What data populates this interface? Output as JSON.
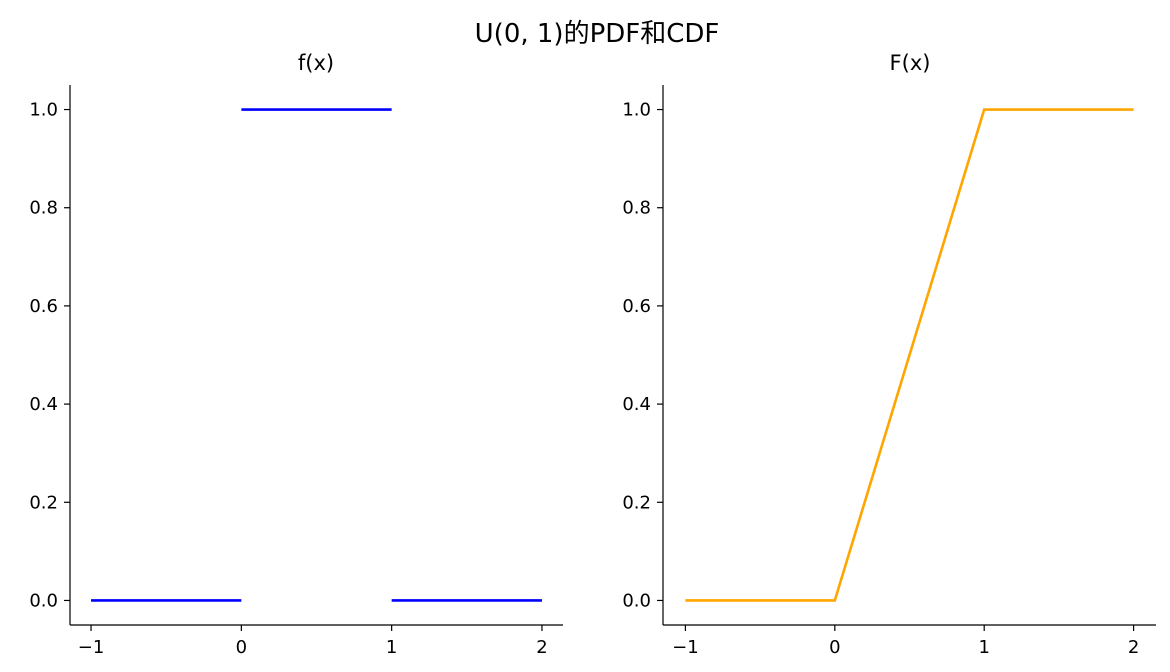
{
  "figure": {
    "suptitle": "U(0, 1)的PDF和CDF"
  },
  "chart_data": [
    {
      "type": "line",
      "title": "f(x)",
      "xlabel": "",
      "ylabel": "",
      "xlim": [
        -1.14,
        2.14
      ],
      "ylim": [
        -0.05,
        1.05
      ],
      "xticks": [
        -1,
        0,
        1,
        2
      ],
      "xtick_labels": [
        "−1",
        "0",
        "1",
        "2"
      ],
      "yticks": [
        0.0,
        0.2,
        0.4,
        0.6,
        0.8,
        1.0
      ],
      "ytick_labels": [
        "0.0",
        "0.2",
        "0.4",
        "0.6",
        "0.8",
        "1.0"
      ],
      "grid": false,
      "series": [
        {
          "color": "#0000ff",
          "segments": [
            {
              "x": [
                -1,
                0
              ],
              "y": [
                0,
                0
              ]
            },
            {
              "x": [
                0,
                1
              ],
              "y": [
                1,
                1
              ]
            },
            {
              "x": [
                1,
                2
              ],
              "y": [
                0,
                0
              ]
            }
          ]
        }
      ]
    },
    {
      "type": "line",
      "title": "F(x)",
      "xlabel": "",
      "ylabel": "",
      "xlim": [
        -1.15,
        2.15
      ],
      "ylim": [
        -0.05,
        1.05
      ],
      "xticks": [
        -1,
        0,
        1,
        2
      ],
      "xtick_labels": [
        "−1",
        "0",
        "1",
        "2"
      ],
      "yticks": [
        0.0,
        0.2,
        0.4,
        0.6,
        0.8,
        1.0
      ],
      "ytick_labels": [
        "0.0",
        "0.2",
        "0.4",
        "0.6",
        "0.8",
        "1.0"
      ],
      "grid": false,
      "series": [
        {
          "color": "#ffa500",
          "segments": [
            {
              "x": [
                -1,
                0,
                1,
                2
              ],
              "y": [
                0,
                0,
                1,
                1
              ]
            }
          ]
        }
      ]
    }
  ]
}
